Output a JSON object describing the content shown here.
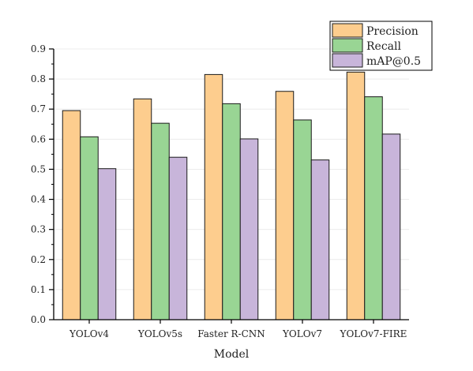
{
  "chart_data": {
    "type": "bar",
    "title": "",
    "xlabel": "Model",
    "ylabel": "",
    "categories": [
      "YOLOv4",
      "YOLOv5s",
      "Faster R-CNN",
      "YOLOv7",
      "YOLOv7-FIRE"
    ],
    "series": [
      {
        "name": "Precision",
        "color": "#FDCD8E",
        "values": [
          0.695,
          0.734,
          0.815,
          0.759,
          0.823
        ]
      },
      {
        "name": "Recall",
        "color": "#99D594",
        "values": [
          0.608,
          0.653,
          0.718,
          0.664,
          0.741
        ]
      },
      {
        "name": "mAP@0.5",
        "color": "#C8B5DA",
        "values": [
          0.502,
          0.54,
          0.601,
          0.531,
          0.617
        ]
      }
    ],
    "ylim": [
      0,
      0.9
    ],
    "yticks": [
      "0.0",
      "0.1",
      "0.2",
      "0.3",
      "0.4",
      "0.5",
      "0.6",
      "0.7",
      "0.8",
      "0.9"
    ],
    "grid": true,
    "legend_position": "top-right"
  }
}
